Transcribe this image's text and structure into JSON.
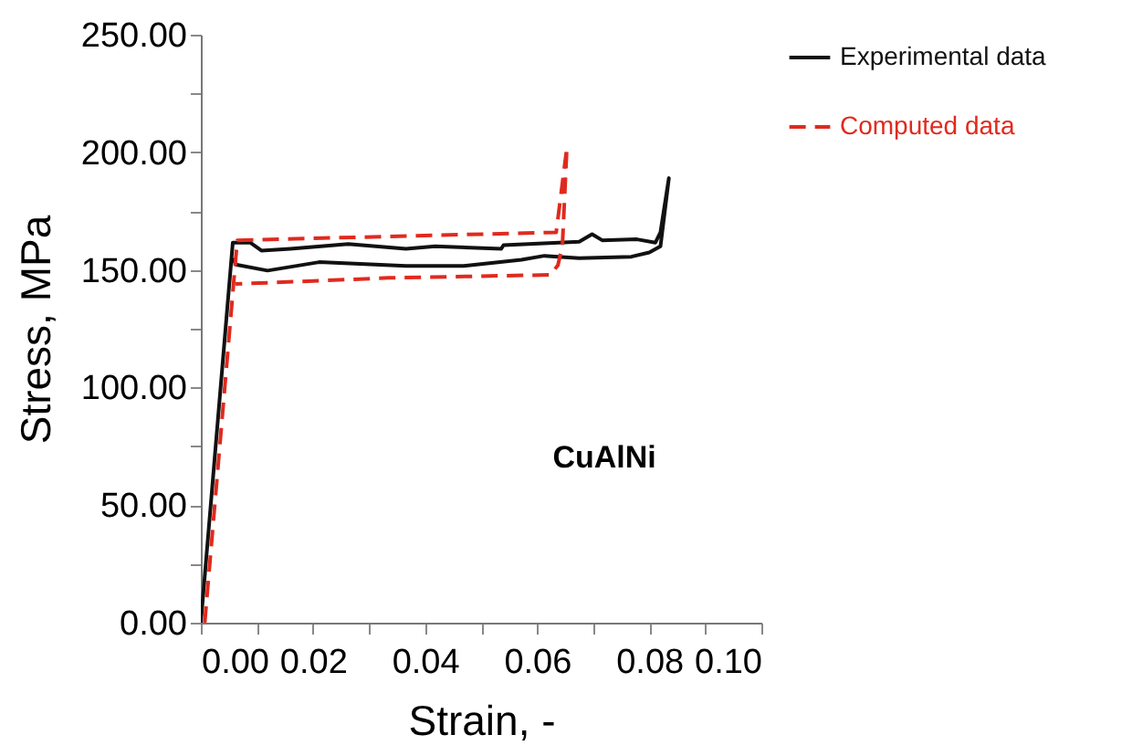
{
  "chart_data": {
    "type": "line",
    "xlabel": "Strain, -",
    "ylabel": "Stress, MPa",
    "annotations": [
      "CuAlNi"
    ],
    "legend": "right",
    "grid": false,
    "xlim": [
      0,
      0.1
    ],
    "xticks": [
      {
        "value": 0,
        "label": "0.00"
      },
      {
        "value": 0.01,
        "label": null
      },
      {
        "value": 0.02,
        "label": "0.02"
      },
      {
        "value": 0.03,
        "label": null
      },
      {
        "value": 0.04,
        "label": "0.04"
      },
      {
        "value": 0.05,
        "label": null
      },
      {
        "value": 0.06,
        "label": "0.06"
      },
      {
        "value": 0.07,
        "label": null
      },
      {
        "value": 0.08,
        "label": "0.08"
      },
      {
        "value": 0.09,
        "label": null
      },
      {
        "value": 0.1,
        "label": "0.10"
      }
    ],
    "ylim": [
      0,
      250
    ],
    "yticks": [
      {
        "value": 0,
        "label": "0.00"
      },
      {
        "value": 25,
        "label": null
      },
      {
        "value": 50,
        "label": "50.00"
      },
      {
        "value": 75,
        "label": null
      },
      {
        "value": 100,
        "label": "100.00"
      },
      {
        "value": 125,
        "label": null
      },
      {
        "value": 150,
        "label": "150.00"
      },
      {
        "value": 175,
        "label": null
      },
      {
        "value": 200,
        "label": "200.00"
      },
      {
        "value": 225,
        "label": null
      },
      {
        "value": 250,
        "label": "250.00"
      }
    ],
    "series": [
      {
        "name": "Experimental data",
        "color": "#111111",
        "line_style": "solid",
        "x": [
          0,
          0.0057,
          0.0088,
          0.0108,
          0.016,
          0.0263,
          0.0366,
          0.0418,
          0.0536,
          0.054,
          0.0675,
          0.0698,
          0.0716,
          0.0778,
          0.0811,
          0.082,
          0.0835,
          0.082,
          0.08,
          0.0768,
          0.0675,
          0.0613,
          0.0572,
          0.0469,
          0.0366,
          0.0211,
          0.0119,
          0.0062,
          0.0058
        ],
        "values": [
          0,
          161.6,
          161.6,
          158.2,
          159,
          161,
          159,
          160,
          159,
          160.5,
          162,
          165.2,
          162.6,
          163,
          161.6,
          166,
          189,
          160,
          157.4,
          155.6,
          155,
          156,
          154.3,
          151.7,
          151.7,
          153.3,
          149.7,
          152.3,
          155
        ]
      },
      {
        "name": "Computed data",
        "color": "#e02a1e",
        "line_style": "dashed",
        "x": [
          0.0007,
          0.0065,
          0.0634,
          0.0653,
          0.0645,
          0.0637,
          0.0624,
          0.0335,
          0.0062
        ],
        "values": [
          0,
          162.6,
          166,
          202,
          160,
          152,
          147.9,
          146.6,
          144
        ]
      }
    ]
  }
}
